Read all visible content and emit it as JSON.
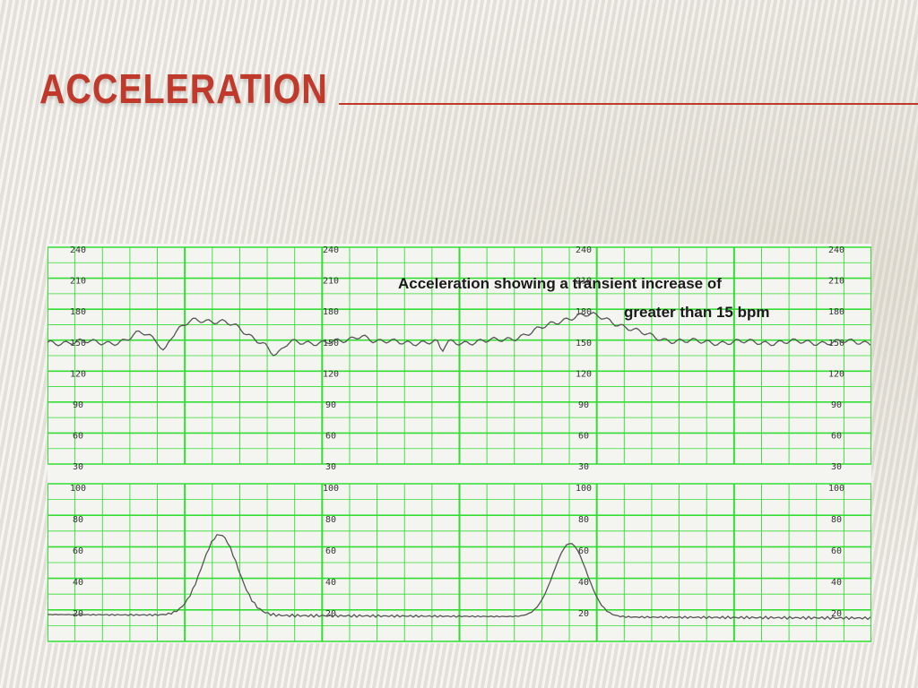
{
  "slide": {
    "title": "ACCELERATION"
  },
  "strip": {
    "annotation_line1": "Acceleration showing a transient increase of",
    "annotation_line2": "greater than 15 bpm",
    "fhr_scale_labels": [
      "240",
      "210",
      "180",
      "150",
      "120",
      "90",
      "60",
      "30"
    ],
    "uc_scale_labels": [
      "100",
      "80",
      "60",
      "40",
      "20"
    ],
    "grid_color": "#33dd33",
    "trace_color": "#555555"
  }
}
